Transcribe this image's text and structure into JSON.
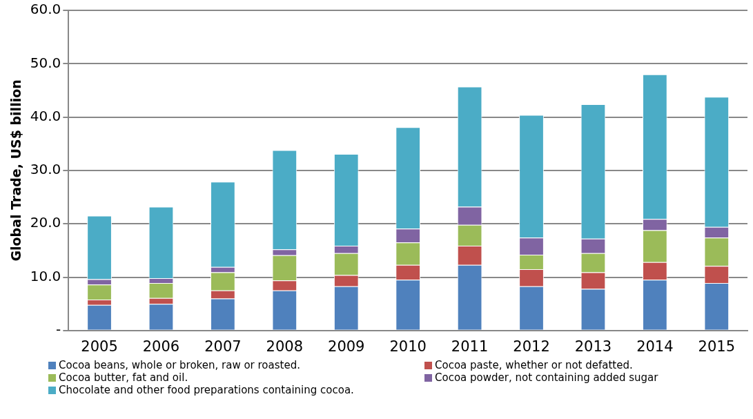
{
  "chart_data": {
    "type": "bar",
    "stacked": true,
    "ylabel": "Global Trade, US$ billion",
    "categories": [
      "2005",
      "2006",
      "2007",
      "2008",
      "2009",
      "2010",
      "2011",
      "2012",
      "2013",
      "2014",
      "2015"
    ],
    "series": [
      {
        "name": "Cocoa beans, whole or broken, raw or roasted.",
        "color": "#4f81bd",
        "values": [
          4.8,
          5.0,
          6.0,
          7.5,
          8.3,
          9.5,
          12.3,
          8.3,
          7.8,
          9.5,
          8.9
        ]
      },
      {
        "name": "Cocoa paste, whether or not defatted.",
        "color": "#c0504d",
        "values": [
          1.0,
          1.1,
          1.5,
          1.9,
          2.1,
          2.8,
          3.6,
          3.2,
          3.1,
          3.3,
          3.2
        ]
      },
      {
        "name": "Cocoa butter, fat and oil.",
        "color": "#9bbb59",
        "values": [
          2.8,
          2.8,
          3.4,
          4.7,
          4.1,
          4.2,
          3.9,
          2.7,
          3.6,
          6.0,
          5.3
        ]
      },
      {
        "name": "Cocoa powder, not containing added sugar",
        "color": "#8064a2",
        "values": [
          1.0,
          0.9,
          1.0,
          1.1,
          1.4,
          2.6,
          3.4,
          3.2,
          2.7,
          2.1,
          2.0
        ]
      },
      {
        "name": "Chocolate and other food preparations containing cocoa.",
        "color": "#4bacc6",
        "values": [
          11.9,
          13.4,
          16.0,
          18.6,
          17.2,
          19.0,
          22.5,
          23.0,
          25.2,
          27.1,
          24.4
        ]
      }
    ],
    "ylim": [
      0,
      60
    ],
    "yticks": [
      {
        "value": 0,
        "label": "-"
      },
      {
        "value": 10,
        "label": "10.0"
      },
      {
        "value": 20,
        "label": "20.0"
      },
      {
        "value": 30,
        "label": "30.0"
      },
      {
        "value": 40,
        "label": "40.0"
      },
      {
        "value": 50,
        "label": "50.0"
      },
      {
        "value": 60,
        "label": "60.0"
      }
    ],
    "grid": "y",
    "legend": "bottom"
  }
}
